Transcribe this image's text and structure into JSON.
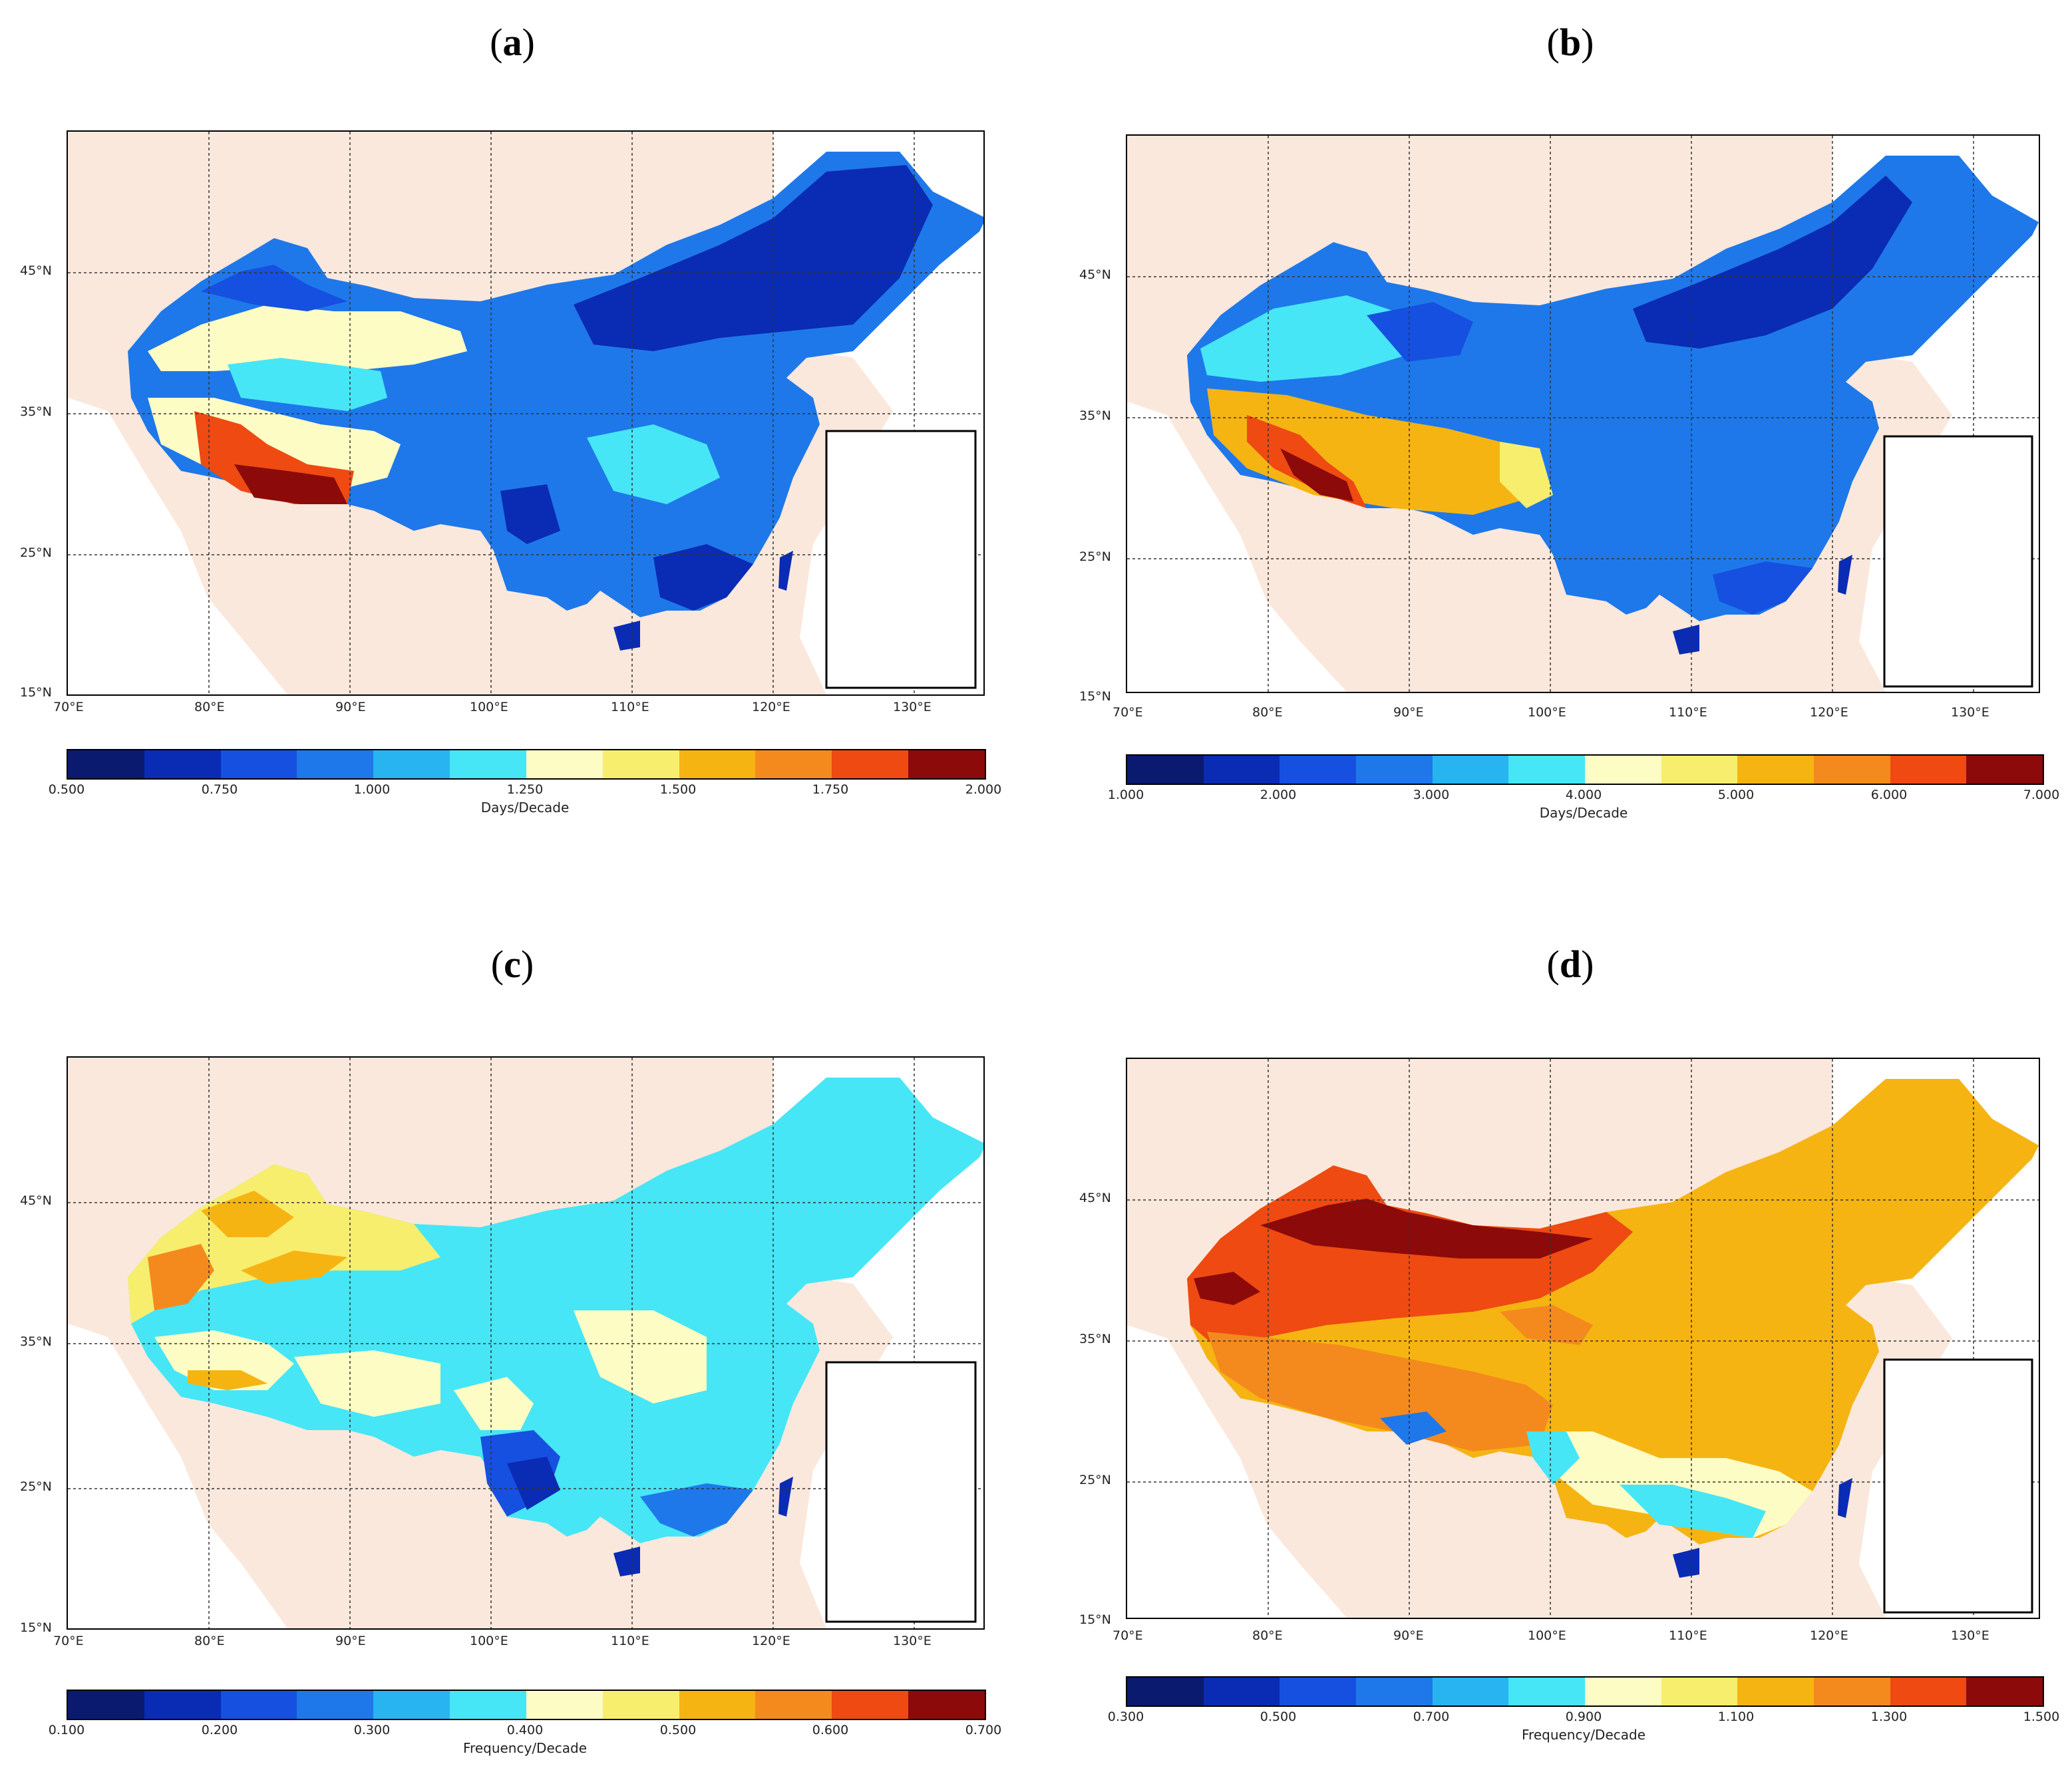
{
  "panels": [
    {
      "label": "(a)",
      "letter": "a",
      "lon_labels": [
        "70°E",
        "80°E",
        "90°E",
        "100°E",
        "110°E",
        "120°E",
        "130°E"
      ],
      "lat_labels": [
        "45°N",
        "35°N",
        "25°N",
        "15°N"
      ],
      "colorbar": {
        "colors": [
          "#0a1a6e",
          "#0a2bb4",
          "#1650e0",
          "#1e78ea",
          "#28b4f0",
          "#46e6f6",
          "#fdfcc4",
          "#f8ee6e",
          "#f6b412",
          "#f48a1e",
          "#ee4a12",
          "#8c0a0a"
        ],
        "ticks": [
          "0.500",
          "0.750",
          "1.000",
          "1.250",
          "1.500",
          "1.750",
          "2.000"
        ],
        "unit": "Days/Decade"
      }
    },
    {
      "label": "(b)",
      "letter": "b",
      "lon_labels": [
        "70°E",
        "80°E",
        "90°E",
        "100°E",
        "110°E",
        "120°E",
        "130°E"
      ],
      "lat_labels": [
        "45°N",
        "35°N",
        "25°N",
        "15°N"
      ],
      "colorbar": {
        "colors": [
          "#0a1a6e",
          "#0a2bb4",
          "#1650e0",
          "#1e78ea",
          "#28b4f0",
          "#46e6f6",
          "#fdfcc4",
          "#f8ee6e",
          "#f6b412",
          "#f48a1e",
          "#ee4a12",
          "#8c0a0a"
        ],
        "ticks": [
          "1.000",
          "2.000",
          "3.000",
          "4.000",
          "5.000",
          "6.000",
          "7.000"
        ],
        "unit": "Days/Decade"
      }
    },
    {
      "label": "(c)",
      "letter": "c",
      "lon_labels": [
        "70°E",
        "80°E",
        "90°E",
        "100°E",
        "110°E",
        "120°E",
        "130°E"
      ],
      "lat_labels": [
        "45°N",
        "35°N",
        "25°N",
        "15°N"
      ],
      "colorbar": {
        "colors": [
          "#0a1a6e",
          "#0a2bb4",
          "#1650e0",
          "#1e78ea",
          "#28b4f0",
          "#46e6f6",
          "#fdfcc4",
          "#f8ee6e",
          "#f6b412",
          "#f48a1e",
          "#ee4a12",
          "#8c0a0a"
        ],
        "ticks": [
          "0.100",
          "0.200",
          "0.300",
          "0.400",
          "0.500",
          "0.600",
          "0.700"
        ],
        "unit": "Frequency/Decade"
      }
    },
    {
      "label": "(d)",
      "letter": "d",
      "lon_labels": [
        "70°E",
        "80°E",
        "90°E",
        "100°E",
        "110°E",
        "120°E",
        "130°E"
      ],
      "lat_labels": [
        "45°N",
        "35°N",
        "25°N",
        "15°N"
      ],
      "colorbar": {
        "colors": [
          "#0a1a6e",
          "#0a2bb4",
          "#1650e0",
          "#1e78ea",
          "#28b4f0",
          "#46e6f6",
          "#fdfcc4",
          "#f8ee6e",
          "#f6b412",
          "#f48a1e",
          "#ee4a12",
          "#8c0a0a"
        ],
        "ticks": [
          "0.300",
          "0.500",
          "0.700",
          "0.900",
          "1.100",
          "1.300",
          "1.500"
        ],
        "unit": "Frequency/Decade"
      }
    }
  ]
}
